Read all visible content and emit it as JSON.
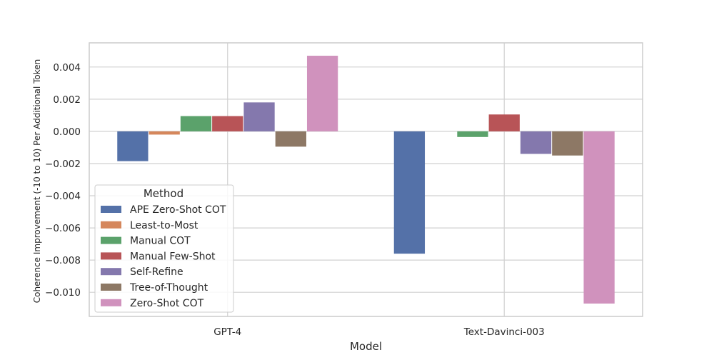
{
  "chart_data": {
    "type": "bar",
    "xlabel": "Model",
    "ylabel": "Coherence Improvement (-10 to 10) Per Additional Token",
    "categories": [
      "GPT-4",
      "Text-Davinci-003"
    ],
    "ylim": [
      -0.0115,
      0.0055
    ],
    "yticks": [
      0.004,
      0.002,
      0.0,
      -0.002,
      -0.004,
      -0.006,
      -0.008,
      -0.01
    ],
    "ytick_labels": [
      "0.004",
      "0.002",
      "0.000",
      "−0.002",
      "−0.004",
      "−0.006",
      "−0.008",
      "−0.010"
    ],
    "grid": true,
    "legend": {
      "title": "Method",
      "position": "lower-left"
    },
    "series": [
      {
        "name": "APE Zero-Shot COT",
        "color": "#5471a8",
        "values": [
          -0.00185,
          -0.0076
        ]
      },
      {
        "name": "Least-to-Most",
        "color": "#d5875c",
        "values": [
          -0.0002,
          0.0
        ]
      },
      {
        "name": "Manual COT",
        "color": "#5ba26b",
        "values": [
          0.00095,
          -0.00035
        ]
      },
      {
        "name": "Manual Few-Shot",
        "color": "#b85457",
        "values": [
          0.00095,
          0.00105
        ]
      },
      {
        "name": "Self-Refine",
        "color": "#8478ad",
        "values": [
          0.0018,
          -0.0014
        ]
      },
      {
        "name": "Tree-of-Thought",
        "color": "#8d7865",
        "values": [
          -0.00095,
          -0.0015
        ]
      },
      {
        "name": "Zero-Shot COT",
        "color": "#d092bd",
        "values": [
          0.0047,
          -0.0107
        ]
      }
    ]
  }
}
